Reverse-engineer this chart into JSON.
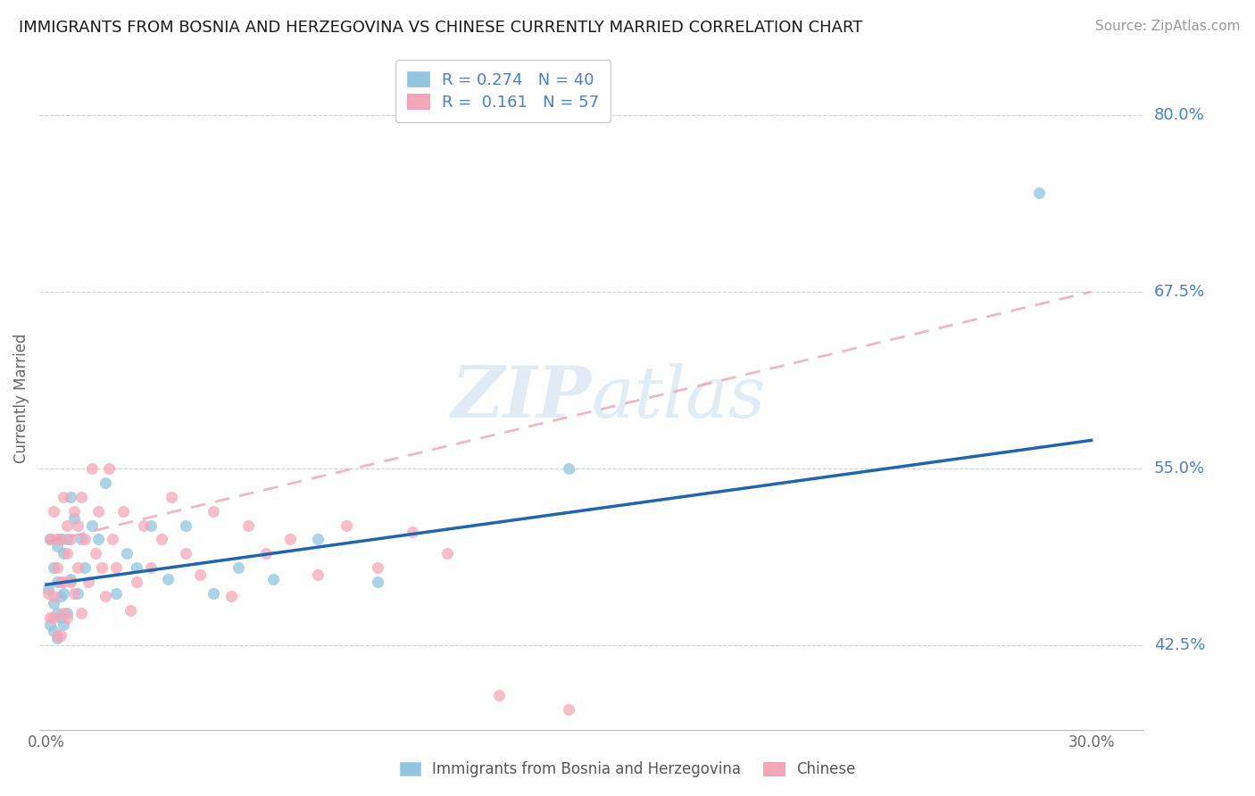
{
  "title": "IMMIGRANTS FROM BOSNIA AND HERZEGOVINA VS CHINESE CURRENTLY MARRIED CORRELATION CHART",
  "source": "Source: ZipAtlas.com",
  "ylabel": "Currently Married",
  "yticks": [
    "80.0%",
    "67.5%",
    "55.0%",
    "42.5%"
  ],
  "ytick_values": [
    0.8,
    0.675,
    0.55,
    0.425
  ],
  "ymin": 0.365,
  "ymax": 0.835,
  "xmin": -0.002,
  "xmax": 0.315,
  "legend1_label": "R = 0.274   N = 40",
  "legend2_label": "R =  0.161   N = 57",
  "legend_bottom1": "Immigrants from Bosnia and Herzegovina",
  "legend_bottom2": "Chinese",
  "color_blue": "#92c5de",
  "color_pink": "#f4a7b9",
  "line_blue": "#2166ac",
  "line_pink": "#d6604d",
  "line_pink_dash": "#e8a0b0",
  "grid_color": "#d0d0d0",
  "bosnia_x": [
    0.0005,
    0.001,
    0.001,
    0.002,
    0.002,
    0.002,
    0.003,
    0.003,
    0.003,
    0.003,
    0.004,
    0.004,
    0.004,
    0.005,
    0.005,
    0.005,
    0.006,
    0.006,
    0.007,
    0.007,
    0.008,
    0.009,
    0.01,
    0.011,
    0.013,
    0.015,
    0.017,
    0.02,
    0.023,
    0.026,
    0.03,
    0.035,
    0.04,
    0.048,
    0.055,
    0.065,
    0.078,
    0.095,
    0.15,
    0.285
  ],
  "bosnia_y": [
    0.465,
    0.5,
    0.44,
    0.48,
    0.455,
    0.435,
    0.47,
    0.448,
    0.43,
    0.495,
    0.46,
    0.5,
    0.445,
    0.49,
    0.462,
    0.44,
    0.5,
    0.448,
    0.53,
    0.472,
    0.515,
    0.462,
    0.5,
    0.48,
    0.51,
    0.5,
    0.54,
    0.462,
    0.49,
    0.48,
    0.51,
    0.472,
    0.51,
    0.462,
    0.48,
    0.472,
    0.5,
    0.47,
    0.55,
    0.745
  ],
  "chinese_x": [
    0.0005,
    0.001,
    0.001,
    0.002,
    0.002,
    0.002,
    0.003,
    0.003,
    0.003,
    0.004,
    0.004,
    0.004,
    0.005,
    0.005,
    0.005,
    0.006,
    0.006,
    0.006,
    0.007,
    0.007,
    0.008,
    0.008,
    0.009,
    0.009,
    0.01,
    0.01,
    0.011,
    0.012,
    0.013,
    0.014,
    0.015,
    0.016,
    0.017,
    0.018,
    0.019,
    0.02,
    0.022,
    0.024,
    0.026,
    0.028,
    0.03,
    0.033,
    0.036,
    0.04,
    0.044,
    0.048,
    0.053,
    0.058,
    0.063,
    0.07,
    0.078,
    0.086,
    0.095,
    0.105,
    0.115,
    0.13,
    0.15
  ],
  "chinese_y": [
    0.462,
    0.5,
    0.445,
    0.52,
    0.46,
    0.445,
    0.48,
    0.432,
    0.5,
    0.47,
    0.432,
    0.5,
    0.47,
    0.448,
    0.53,
    0.49,
    0.445,
    0.51,
    0.47,
    0.5,
    0.52,
    0.462,
    0.48,
    0.51,
    0.448,
    0.53,
    0.5,
    0.47,
    0.55,
    0.49,
    0.52,
    0.48,
    0.46,
    0.55,
    0.5,
    0.48,
    0.52,
    0.45,
    0.47,
    0.51,
    0.48,
    0.5,
    0.53,
    0.49,
    0.475,
    0.52,
    0.46,
    0.51,
    0.49,
    0.5,
    0.475,
    0.51,
    0.48,
    0.505,
    0.49,
    0.39,
    0.38
  ],
  "blue_line_x0": 0.0,
  "blue_line_y0": 0.468,
  "blue_line_x1": 0.3,
  "blue_line_y1": 0.57,
  "pink_line_x0": 0.0,
  "pink_line_y0": 0.498,
  "pink_line_x1": 0.3,
  "pink_line_y1": 0.675
}
